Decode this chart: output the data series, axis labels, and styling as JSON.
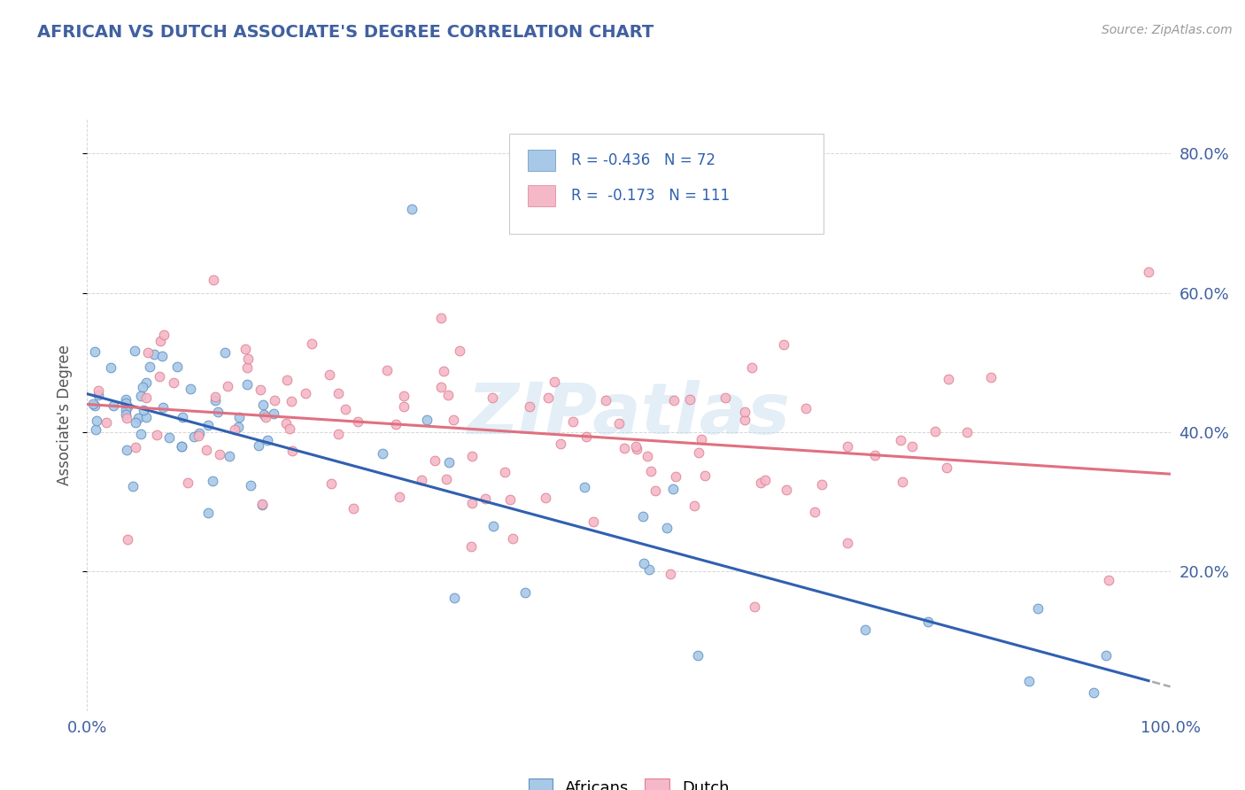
{
  "title": "AFRICAN VS DUTCH ASSOCIATE'S DEGREE CORRELATION CHART",
  "source_text": "Source: ZipAtlas.com",
  "ylabel": "Associate's Degree",
  "background_color": "#ffffff",
  "plot_bg_color": "#ffffff",
  "grid_color": "#cccccc",
  "african_color": "#a8c8e8",
  "dutch_color": "#f4b8c8",
  "african_edge_color": "#6090c0",
  "dutch_edge_color": "#e08090",
  "trend_line_african": "#3060b0",
  "trend_line_dutch": "#e07080",
  "xlim": [
    0.0,
    1.0
  ],
  "ylim": [
    0.0,
    0.85
  ],
  "xtick_labels": [
    "0.0%",
    "100.0%"
  ],
  "ytick_labels": [
    "20.0%",
    "40.0%",
    "60.0%",
    "80.0%"
  ],
  "ytick_values": [
    0.2,
    0.4,
    0.6,
    0.8
  ],
  "watermark": "ZIPatlas",
  "legend_af_R": "R = -0.436",
  "legend_af_N": "N = 72",
  "legend_du_R": "R =  -0.173",
  "legend_du_N": "N = 111",
  "african_line_intercept": 0.455,
  "african_line_slope": -0.42,
  "dutch_line_intercept": 0.44,
  "dutch_line_slope": -0.1
}
